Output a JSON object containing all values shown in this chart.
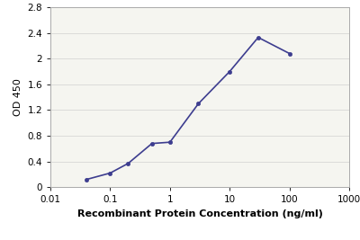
{
  "x": [
    0.04,
    0.1,
    0.2,
    0.5,
    1,
    3,
    10,
    30,
    100
  ],
  "y": [
    0.12,
    0.22,
    0.37,
    0.68,
    0.7,
    1.3,
    1.8,
    2.33,
    2.08
  ],
  "line_color": "#3d3d8f",
  "marker_color": "#3d3d8f",
  "marker_style": "o",
  "marker_size": 3,
  "line_width": 1.2,
  "xlabel": "Recombinant Protein Concentration (ng/ml)",
  "ylabel": "OD 450",
  "xlim": [
    0.01,
    1000
  ],
  "ylim": [
    0,
    2.8
  ],
  "yticks": [
    0,
    0.4,
    0.8,
    1.2,
    1.6,
    2.0,
    2.4,
    2.8
  ],
  "ytick_labels": [
    "0",
    "0.4",
    "0.8",
    "1.2",
    "1.6",
    "2",
    "2.4",
    "2.8"
  ],
  "xticks": [
    0.01,
    0.1,
    1,
    10,
    100,
    1000
  ],
  "xtick_labels": [
    "0.01",
    "0.1",
    "1",
    "10",
    "100",
    "1000"
  ],
  "background_color": "#ffffff",
  "plot_bg_color": "#f5f5f0",
  "grid_color": "#d0d0d0",
  "font_size_ticks": 7.5,
  "font_size_label": 8,
  "font_size_ylabel": 8
}
